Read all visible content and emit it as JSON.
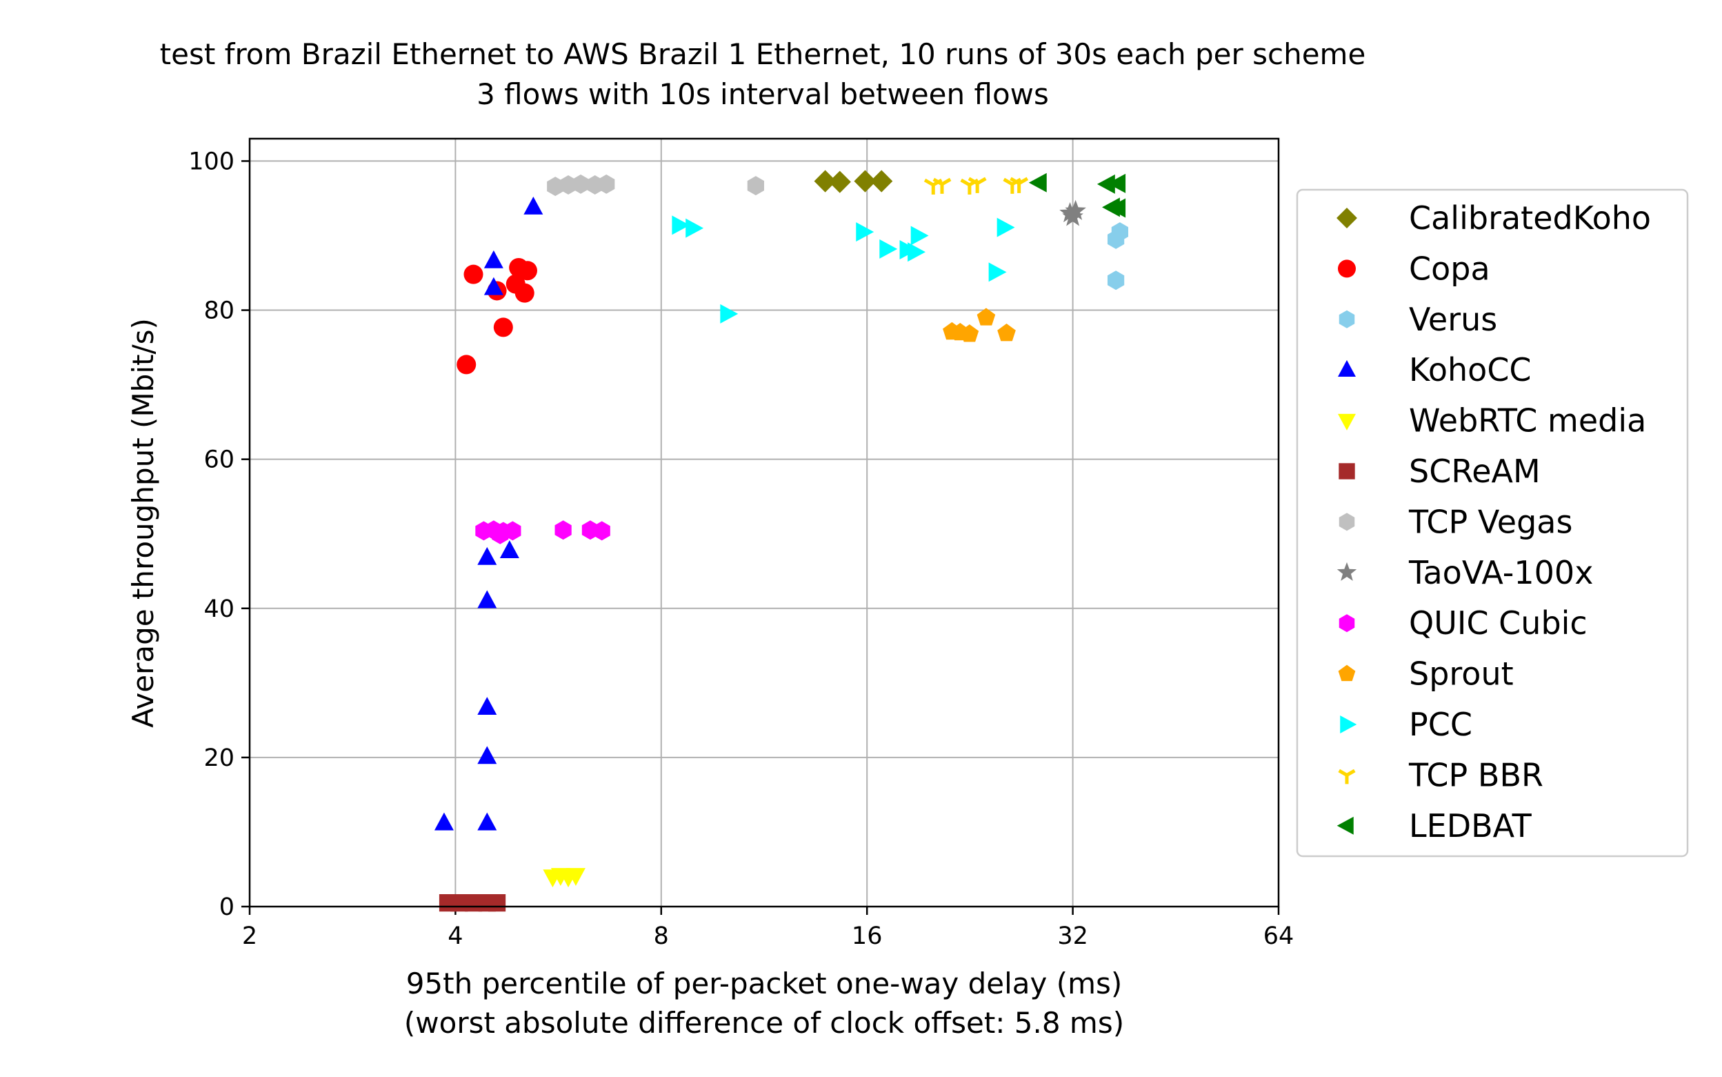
{
  "chart_data": {
    "type": "scatter",
    "title_line1": "test from Brazil Ethernet to AWS Brazil 1 Ethernet, 10 runs of 30s each per scheme",
    "title_line2": "3 flows with 10s interval between flows",
    "xlabel_line1": "95th percentile of per-packet one-way delay (ms)",
    "xlabel_line2": "(worst absolute difference of clock offset: 5.8 ms)",
    "ylabel": "Average throughput (Mbit/s)",
    "x_scale": "log2",
    "x_inverted": true,
    "xlim": [
      64,
      2
    ],
    "ylim": [
      0,
      103
    ],
    "xticks": [
      64,
      32,
      16,
      8,
      4,
      2
    ],
    "yticks": [
      0,
      20,
      40,
      60,
      80,
      100
    ],
    "grid": true,
    "legend_position": "right, outside plot",
    "series": [
      {
        "name": "CalibratedKoho",
        "color": "#808000",
        "marker": "diamond",
        "points": [
          [
            16.8,
            97.3
          ],
          [
            15.9,
            97.3
          ],
          [
            14.6,
            97.2
          ],
          [
            13.9,
            97.3
          ]
        ]
      },
      {
        "name": "Copa",
        "color": "#ff0000",
        "marker": "circle",
        "points": [
          [
            5.1,
            85.3
          ],
          [
            4.95,
            85.7
          ],
          [
            5.05,
            82.3
          ],
          [
            4.9,
            83.5
          ],
          [
            4.6,
            82.6
          ],
          [
            4.7,
            77.7
          ],
          [
            4.25,
            84.8
          ],
          [
            4.15,
            72.7
          ]
        ]
      },
      {
        "name": "Verus",
        "color": "#87ceeb",
        "marker": "hexagon",
        "points": [
          [
            37.5,
            90.5
          ],
          [
            37.0,
            89.5
          ],
          [
            37.0,
            84.0
          ]
        ]
      },
      {
        "name": "KohoCC",
        "color": "#0000ff",
        "marker": "triangle-up",
        "points": [
          [
            5.2,
            93.8
          ],
          [
            4.55,
            86.6
          ],
          [
            4.55,
            83.0
          ],
          [
            4.8,
            47.7
          ],
          [
            4.45,
            46.8
          ],
          [
            4.45,
            41.0
          ],
          [
            4.45,
            26.7
          ],
          [
            4.45,
            20.1
          ],
          [
            4.45,
            11.2
          ],
          [
            3.85,
            11.2
          ]
        ]
      },
      {
        "name": "WebRTC media",
        "color": "#ffff00",
        "marker": "triangle-down",
        "points": [
          [
            6.0,
            4.2
          ],
          [
            5.85,
            4.0
          ],
          [
            5.7,
            4.2
          ],
          [
            5.55,
            4.0
          ]
        ]
      },
      {
        "name": "SCReAM",
        "color": "#a52a2a",
        "marker": "square",
        "points": [
          [
            4.6,
            0.5
          ],
          [
            4.45,
            0.5
          ],
          [
            4.25,
            0.5
          ],
          [
            4.05,
            0.5
          ],
          [
            3.9,
            0.5
          ]
        ]
      },
      {
        "name": "TCP Vegas",
        "color": "#c0c0c0",
        "marker": "hexagon",
        "points": [
          [
            11.0,
            96.7
          ],
          [
            6.65,
            96.9
          ],
          [
            6.4,
            96.8
          ],
          [
            6.1,
            96.9
          ],
          [
            5.85,
            96.8
          ],
          [
            5.6,
            96.6
          ]
        ]
      },
      {
        "name": "TaoVA-100x",
        "color": "#808080",
        "marker": "star",
        "points": [
          [
            32.3,
            93.3
          ],
          [
            32.0,
            92.5
          ],
          [
            31.7,
            93.0
          ]
        ]
      },
      {
        "name": "QUIC Cubic",
        "color": "#ff00ff",
        "marker": "hexagon",
        "points": [
          [
            6.55,
            50.4
          ],
          [
            6.3,
            50.5
          ],
          [
            5.75,
            50.5
          ],
          [
            4.85,
            50.4
          ],
          [
            4.7,
            50.3
          ],
          [
            4.55,
            50.5
          ],
          [
            4.4,
            50.4
          ],
          [
            4.65,
            49.9
          ]
        ]
      },
      {
        "name": "Sprout",
        "color": "#ffa500",
        "marker": "pentagon",
        "points": [
          [
            25.6,
            76.9
          ],
          [
            23.9,
            79.0
          ],
          [
            22.6,
            76.8
          ],
          [
            21.9,
            77.0
          ],
          [
            21.3,
            77.1
          ]
        ]
      },
      {
        "name": "PCC",
        "color": "#00ffff",
        "marker": "triangle-right",
        "points": [
          [
            25.4,
            91.1
          ],
          [
            24.7,
            85.1
          ],
          [
            19.0,
            90.0
          ],
          [
            18.8,
            87.8
          ],
          [
            18.3,
            88.1
          ],
          [
            17.1,
            88.2
          ],
          [
            15.8,
            90.5
          ],
          [
            10.0,
            79.5
          ],
          [
            8.9,
            91.0
          ],
          [
            8.5,
            91.4
          ]
        ]
      },
      {
        "name": "TCP BBR",
        "color": "#ffd700",
        "marker": "tri-down",
        "points": [
          [
            26.7,
            97.0
          ],
          [
            26.1,
            96.9
          ],
          [
            23.2,
            97.0
          ],
          [
            22.6,
            96.8
          ],
          [
            20.6,
            96.9
          ],
          [
            20.0,
            96.8
          ]
        ]
      },
      {
        "name": "LEDBAT",
        "color": "#008000",
        "marker": "triangle-left",
        "points": [
          [
            37.3,
            97.0
          ],
          [
            36.0,
            96.9
          ],
          [
            37.3,
            93.7
          ],
          [
            36.6,
            93.8
          ],
          [
            28.6,
            97.1
          ]
        ]
      }
    ]
  }
}
